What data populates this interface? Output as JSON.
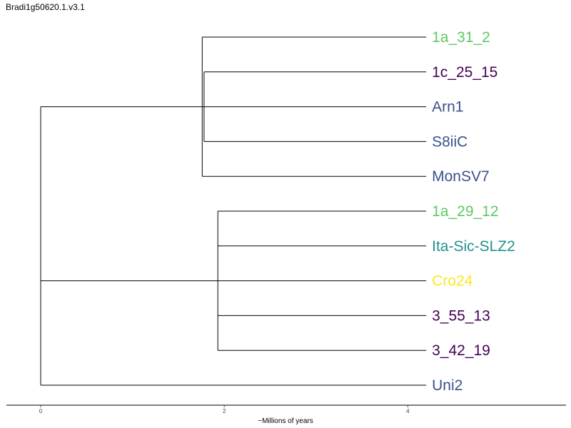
{
  "title": "Bradi1g50620.1.v3.1",
  "chart_data": {
    "type": "dendrogram",
    "xlabel": "~Millions of years",
    "xlim": [
      -0.37,
      5.7
    ],
    "x_ticks": [
      0,
      2,
      4
    ],
    "leaves": [
      {
        "name": "1a_31_2",
        "color": "#5dc863"
      },
      {
        "name": "1c_25_15",
        "color": "#440154"
      },
      {
        "name": "Arn1",
        "color": "#3b528b"
      },
      {
        "name": "S8iiC",
        "color": "#3b528b"
      },
      {
        "name": "MonSV7",
        "color": "#3b528b"
      },
      {
        "name": "1a_29_12",
        "color": "#5dc863"
      },
      {
        "name": "Ita-Sic-SLZ2",
        "color": "#21918c"
      },
      {
        "name": "Cro24",
        "color": "#fde725"
      },
      {
        "name": "3_55_13",
        "color": "#440154"
      },
      {
        "name": "3_42_19",
        "color": "#440154"
      },
      {
        "name": "Uni2",
        "color": "#3b528b"
      }
    ],
    "tree": {
      "x": 0,
      "children": [
        {
          "x": 0,
          "children": [
            {
              "x": 1.76,
              "children": [
                {
                  "leaf": 0
                },
                {
                  "x": 1.78,
                  "children": [
                    {
                      "leaf": 1
                    },
                    {
                      "leaf": 2
                    },
                    {
                      "leaf": 3
                    }
                  ]
                },
                {
                  "leaf": 4
                }
              ]
            },
            {
              "x": 1.93,
              "children": [
                {
                  "leaf": 5
                },
                {
                  "leaf": 6
                },
                {
                  "leaf": 7
                },
                {
                  "leaf": 8
                },
                {
                  "leaf": 9
                }
              ]
            }
          ]
        },
        {
          "leaf": 10
        }
      ]
    },
    "leaf_x": 4.2
  }
}
